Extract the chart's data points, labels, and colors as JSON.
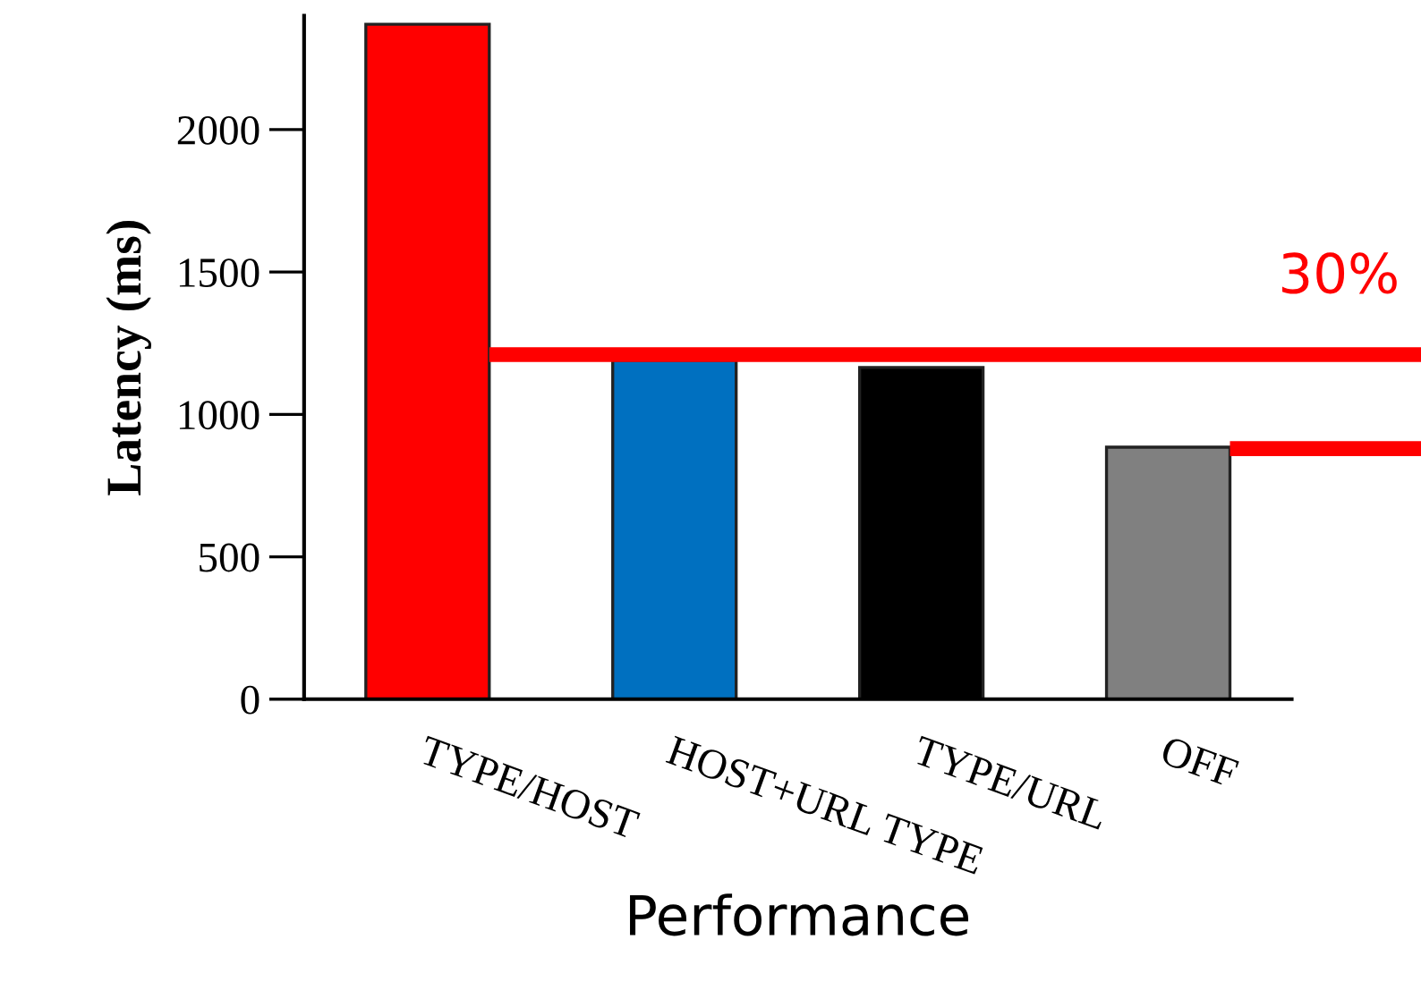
{
  "chart_data": {
    "type": "bar",
    "xlabel": "Performance",
    "ylabel": "Latency (ms)",
    "categories": [
      "TYPE/HOST",
      "HOST+URL TYPE",
      "TYPE/URL",
      "OFF"
    ],
    "values": [
      2370,
      1190,
      1165,
      885
    ],
    "colors": [
      "#ff0000",
      "#0070c0",
      "#000000",
      "#808080"
    ],
    "ylim": [
      0,
      2400
    ],
    "yticks": [
      0,
      500,
      1000,
      1500,
      2000
    ],
    "grid": false,
    "legend": false,
    "ref_lines": [
      {
        "axis": "y",
        "value": 1210,
        "color": "#ff0000"
      },
      {
        "axis": "y",
        "value": 880,
        "color": "#ff0000"
      }
    ],
    "annotations": [
      "30%"
    ]
  }
}
